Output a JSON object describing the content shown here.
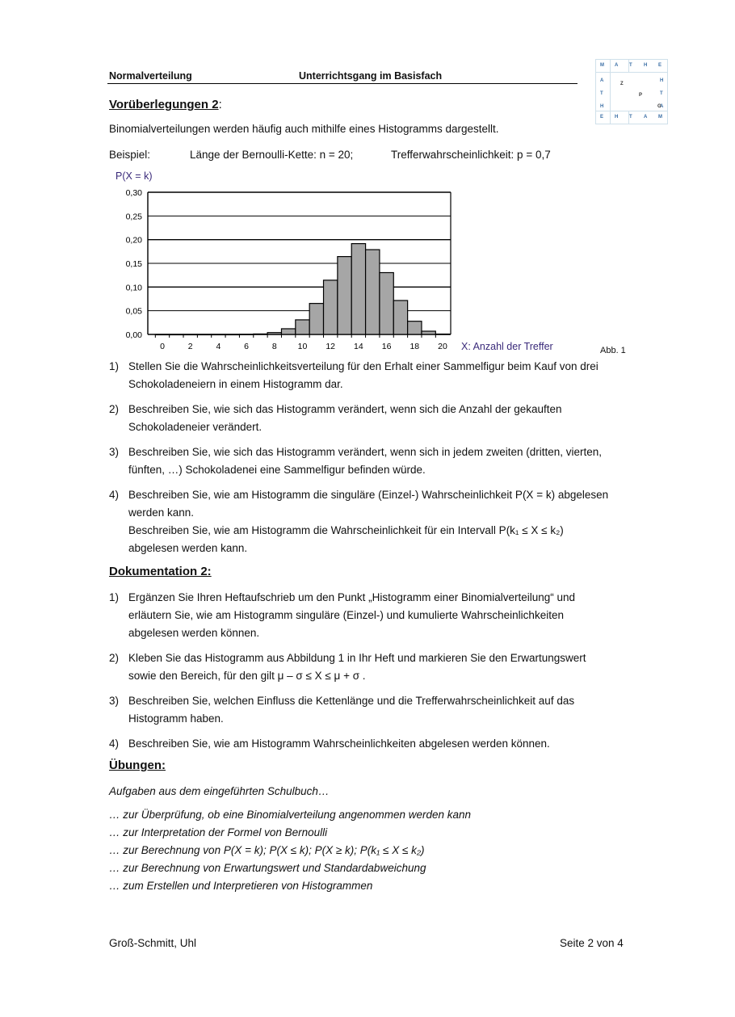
{
  "header": {
    "left": "Normalverteilung",
    "center": "Unterrichtsgang im Basisfach"
  },
  "logo": {
    "top": [
      "M",
      "A",
      "T",
      "H",
      "E"
    ],
    "left": [
      "A",
      "T",
      "H"
    ],
    "right": [
      "H",
      "T",
      "A"
    ],
    "bottom": [
      "E",
      "H",
      "T",
      "A",
      "M"
    ],
    "diag": [
      "Z",
      "P",
      "G"
    ]
  },
  "sec1": {
    "title": "Vorüberlegungen 2",
    "colon": ":",
    "intro": "Binomialverteilungen werden häufig auch mithilfe eines Histogramms dargestellt.",
    "example_label": "Beispiel:",
    "example_n": "Länge der Bernoulli-Kette:  n = 20;",
    "example_p": "Trefferwahrscheinlichkeit:  p = 0,7"
  },
  "figure_caption": "Abb. 1",
  "chart_data": {
    "type": "bar",
    "title": "",
    "ylabel": "P(X = k)",
    "xlabel": "X: Anzahl der Treffer",
    "ylim": [
      0,
      0.3
    ],
    "yticks": [
      "0,00",
      "0,05",
      "0,10",
      "0,15",
      "0,20",
      "0,25",
      "0,30"
    ],
    "xticks": [
      "0",
      "2",
      "4",
      "6",
      "8",
      "10",
      "12",
      "14",
      "16",
      "18",
      "20"
    ],
    "grid": true,
    "categories": [
      0,
      1,
      2,
      3,
      4,
      5,
      6,
      7,
      8,
      9,
      10,
      11,
      12,
      13,
      14,
      15,
      16,
      17,
      18,
      19,
      20
    ],
    "values": [
      0,
      0,
      0,
      0,
      0,
      0.0,
      0.0002,
      0.001,
      0.0039,
      0.012,
      0.0308,
      0.0654,
      0.1144,
      0.1643,
      0.1916,
      0.1789,
      0.1304,
      0.0716,
      0.0278,
      0.0068,
      0.0008
    ],
    "bar_color": "#a6a6a6"
  },
  "tasks1": [
    {
      "num": "1)",
      "lines": [
        "Stellen Sie die Wahrscheinlichkeitsverteilung für den Erhalt einer Sammelfigur beim Kauf von drei",
        "Schokoladeneiern in einem Histogramm dar."
      ]
    },
    {
      "num": "2)",
      "lines": [
        "Beschreiben Sie, wie sich das Histogramm verändert, wenn sich die Anzahl der gekauften",
        "Schokoladeneier verändert."
      ]
    },
    {
      "num": "3)",
      "lines": [
        "Beschreiben Sie, wie sich das Histogramm verändert, wenn sich in jedem zweiten (dritten, vierten,",
        "fünften, …) Schokoladenei eine Sammelfigur befinden würde."
      ]
    },
    {
      "num": "4)",
      "lines": [
        "Beschreiben Sie, wie am Histogramm die singuläre (Einzel-) Wahrscheinlichkeit  P(X = k) abgelesen",
        "werden kann.",
        "Beschreiben Sie, wie am Histogramm die Wahrscheinlichkeit für ein Intervall  P(k₁ ≤ X ≤ k₂)",
        "abgelesen werden kann."
      ]
    }
  ],
  "sec2": {
    "title": "Dokumentation 2:"
  },
  "tasks2": [
    {
      "num": "1)",
      "lines": [
        "Ergänzen Sie Ihren Heftaufschrieb um den Punkt „Histogramm einer Binomialverteilung“ und",
        "erläutern Sie, wie am Histogramm singuläre (Einzel-) und kumulierte Wahrscheinlichkeiten",
        "abgelesen werden können."
      ]
    },
    {
      "num": "2)",
      "lines": [
        "Kleben Sie das Histogramm aus Abbildung 1 in Ihr Heft und markieren Sie den Erwartungswert",
        "sowie den Bereich, für den gilt  μ – σ  ≤  X  ≤ μ + σ  ."
      ]
    },
    {
      "num": "3)",
      "lines": [
        "Beschreiben Sie, welchen Einfluss die Kettenlänge und die Trefferwahrscheinlichkeit auf das",
        "Histogramm haben."
      ]
    },
    {
      "num": "4)",
      "lines": [
        "Beschreiben Sie, wie am Histogramm Wahrscheinlichkeiten abgelesen werden können."
      ]
    }
  ],
  "sec3": {
    "title": "Übungen:",
    "intro": "Aufgaben aus dem eingeführten Schulbuch…",
    "items": [
      "… zur Überprüfung, ob eine Binomialverteilung angenommen werden kann",
      "… zur Interpretation der Formel von Bernoulli",
      "… zur Berechnung von P(X = k); P(X ≤ k); P(X ≥ k); P(k₁ ≤ X ≤ k₂)",
      "… zur Berechnung von Erwartungswert und Standardabweichung",
      "… zum Erstellen und Interpretieren von Histogrammen"
    ]
  },
  "footer": {
    "left": "Groß-Schmitt, Uhl",
    "right": "Seite 2 von 4"
  }
}
